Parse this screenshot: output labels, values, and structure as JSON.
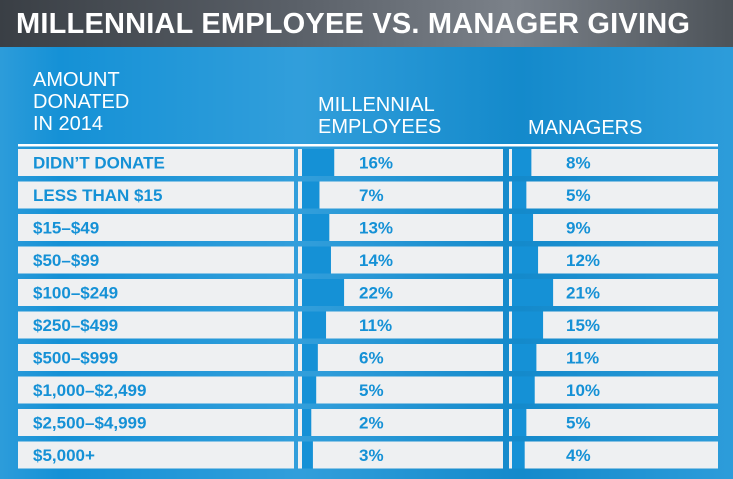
{
  "title": "MILLENNIAL EMPLOYEE VS. MANAGER GIVING",
  "headers": {
    "amount": "AMOUNT\nDONATED\nIN 2014",
    "millennial": "MILLENNIAL\nEMPLOYEES",
    "managers": "MANAGERS"
  },
  "colors": {
    "accent": "#1591d6",
    "row_bg": "#eef0f2",
    "title_bg": "#4d5359"
  },
  "chart_data": {
    "type": "table",
    "categories": [
      "DIDN’T DONATE",
      "LESS THAN $15",
      "$15–$49",
      "$50–$99",
      "$100–$249",
      "$250–$499",
      "$500–$999",
      "$1,000–$2,499",
      "$2,500–$4,999",
      "$5,000+"
    ],
    "series": [
      {
        "name": "MILLENNIAL EMPLOYEES",
        "values": [
          16,
          7,
          13,
          14,
          22,
          11,
          6,
          5,
          2,
          3
        ],
        "labels": [
          "16%",
          "7%",
          "13%",
          "14%",
          "22%",
          "11%",
          "6%",
          "5%",
          "2%",
          "3%"
        ]
      },
      {
        "name": "MANAGERS",
        "values": [
          8,
          5,
          9,
          12,
          21,
          15,
          11,
          10,
          5,
          4
        ],
        "labels": [
          "8%",
          "5%",
          "9%",
          "12%",
          "21%",
          "15%",
          "11%",
          "10%",
          "5%",
          "4%"
        ]
      }
    ]
  }
}
